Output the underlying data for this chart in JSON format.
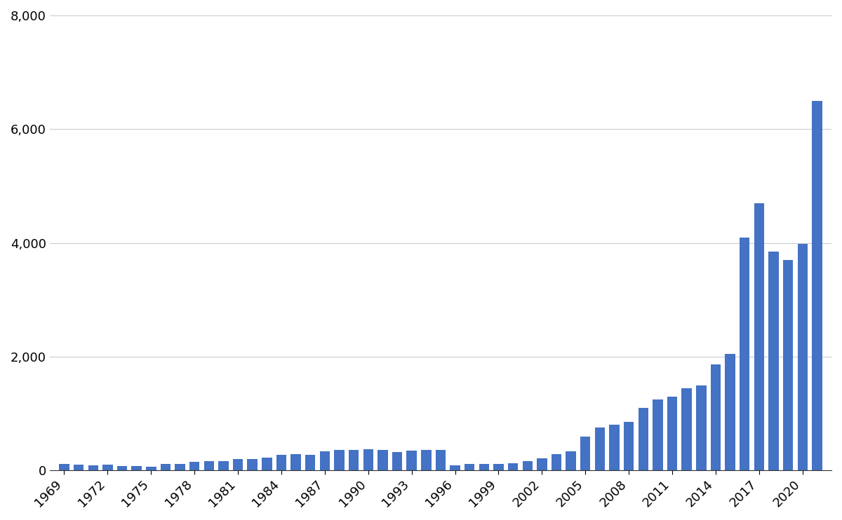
{
  "years": [
    1969,
    1970,
    1971,
    1972,
    1973,
    1974,
    1975,
    1976,
    1977,
    1978,
    1979,
    1980,
    1981,
    1982,
    1983,
    1984,
    1985,
    1986,
    1987,
    1988,
    1989,
    1990,
    1991,
    1992,
    1993,
    1994,
    1995,
    1996,
    1997,
    1998,
    1999,
    2000,
    2001,
    2002,
    2003,
    2004,
    2005,
    2006,
    2007,
    2008,
    2009,
    2010,
    2011,
    2012,
    2013,
    2014,
    2015,
    2016,
    2017,
    2018,
    2019,
    2020,
    2021
  ],
  "values": [
    120,
    100,
    90,
    100,
    80,
    80,
    70,
    110,
    110,
    150,
    160,
    170,
    200,
    200,
    230,
    280,
    290,
    280,
    340,
    360,
    360,
    380,
    360,
    330,
    350,
    360,
    360,
    90,
    110,
    120,
    120,
    130,
    160,
    210,
    290,
    340,
    600,
    760,
    800,
    850,
    1100,
    1250,
    1300,
    1450,
    1490,
    1870,
    2050,
    4100,
    4700,
    3850,
    3700,
    3980,
    6500
  ],
  "bar_color": "#4472C4",
  "background_color": "#ffffff",
  "ylim": [
    0,
    8000
  ],
  "yticks": [
    0,
    2000,
    4000,
    6000,
    8000
  ],
  "xtick_years": [
    1969,
    1972,
    1975,
    1978,
    1981,
    1984,
    1987,
    1990,
    1993,
    1996,
    1999,
    2002,
    2005,
    2008,
    2011,
    2014,
    2017,
    2020
  ],
  "grid_color": "#cccccc",
  "tick_label_fontsize": 13,
  "bar_width": 0.7
}
